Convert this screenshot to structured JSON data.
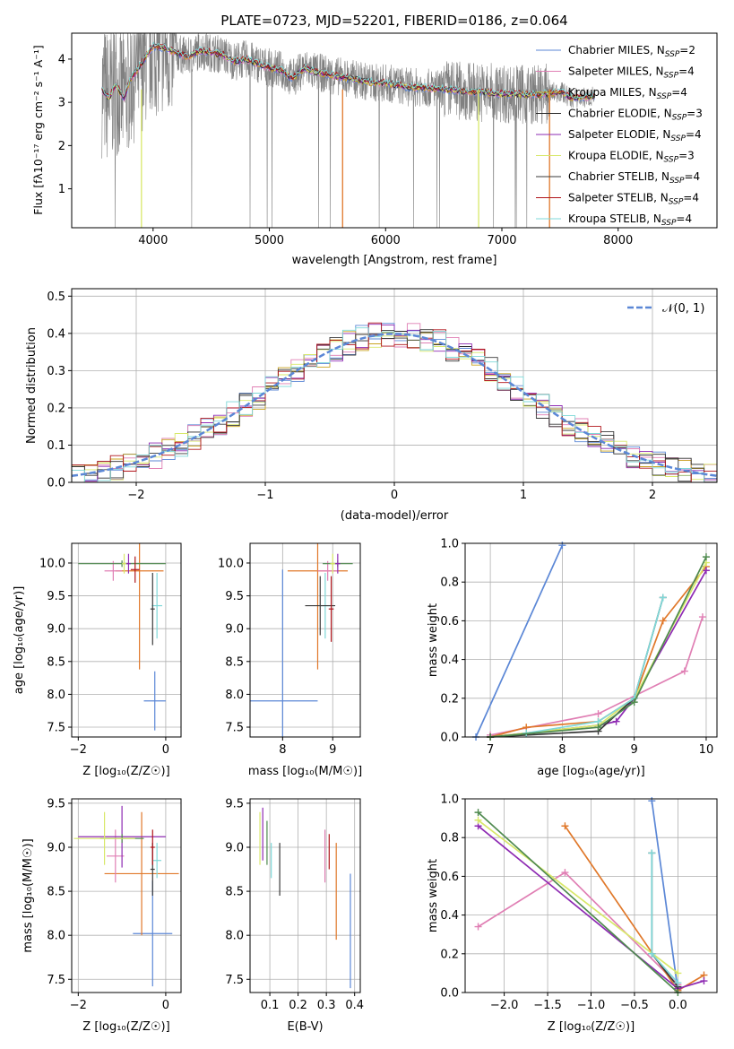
{
  "colors": {
    "Chabrier MILES": "#5b87d6",
    "Salpeter MILES": "#e07fb4",
    "Kroupa MILES": "#c9a31f",
    "Chabrier ELODIE": "#2a2a2a",
    "Salpeter ELODIE": "#8e2bb3",
    "Kroupa ELODIE": "#d8e86a",
    "Chabrier STELIB": "#3a3a3a",
    "Salpeter STELIB": "#b0141a",
    "Kroupa STELIB": "#7fd8d8",
    "orange": "#e0782a",
    "green": "#4f8a4f",
    "data": "#808080",
    "gaussian": "#5b87d6"
  },
  "chart_data": [
    {
      "id": "spectrum",
      "type": "line",
      "title": "PLATE=0723, MJD=52201, FIBERID=0186, z=0.064",
      "xlabel": "wavelength [Angstrom, rest frame]",
      "ylabel": "Flux [fλ10⁻¹⁷ erg cm⁻² s⁻¹ A⁻¹]",
      "xlim": [
        3300,
        8850
      ],
      "ylim": [
        0.1,
        4.6
      ],
      "xticks": [
        "4000",
        "5000",
        "6000",
        "7000",
        "8000"
      ],
      "yticks": [
        "1",
        "2",
        "3",
        "4"
      ],
      "legend_position": "top-right",
      "legend": [
        {
          "name": "Chabrier MILES",
          "nssp": "2"
        },
        {
          "name": "Salpeter MILES",
          "nssp": "4"
        },
        {
          "name": "Kroupa MILES",
          "nssp": "4"
        },
        {
          "name": "Chabrier ELODIE",
          "nssp": "3"
        },
        {
          "name": "Salpeter ELODIE",
          "nssp": "4"
        },
        {
          "name": "Kroupa ELODIE",
          "nssp": "3"
        },
        {
          "name": "Chabrier STELIB",
          "nssp": "4"
        },
        {
          "name": "Salpeter STELIB",
          "nssp": "4"
        },
        {
          "name": "Kroupa STELIB",
          "nssp": "4"
        }
      ],
      "continuum": [
        [
          3560,
          3.3
        ],
        [
          3620,
          3.1
        ],
        [
          3680,
          3.4
        ],
        [
          3750,
          3.1
        ],
        [
          3800,
          3.5
        ],
        [
          3900,
          3.9
        ],
        [
          4000,
          4.3
        ],
        [
          4100,
          4.25
        ],
        [
          4200,
          4.15
        ],
        [
          4300,
          4.05
        ],
        [
          4400,
          4.2
        ],
        [
          4500,
          4.15
        ],
        [
          4600,
          4.1
        ],
        [
          4700,
          3.95
        ],
        [
          4800,
          4.0
        ],
        [
          4900,
          3.9
        ],
        [
          5000,
          3.8
        ],
        [
          5100,
          3.75
        ],
        [
          5200,
          3.55
        ],
        [
          5300,
          3.8
        ],
        [
          5400,
          3.7
        ],
        [
          5500,
          3.65
        ],
        [
          5600,
          3.6
        ],
        [
          5700,
          3.55
        ],
        [
          5800,
          3.5
        ],
        [
          5900,
          3.45
        ],
        [
          6000,
          3.45
        ],
        [
          6100,
          3.4
        ],
        [
          6200,
          3.35
        ],
        [
          6300,
          3.35
        ],
        [
          6400,
          3.32
        ],
        [
          6500,
          3.3
        ],
        [
          6600,
          3.28
        ],
        [
          6700,
          3.25
        ],
        [
          6800,
          3.25
        ],
        [
          6900,
          3.22
        ],
        [
          7000,
          3.2
        ],
        [
          7100,
          3.2
        ],
        [
          7200,
          3.18
        ],
        [
          7300,
          3.18
        ],
        [
          7400,
          3.2
        ],
        [
          7500,
          3.25
        ],
        [
          7600,
          3.1
        ],
        [
          7700,
          3.1
        ],
        [
          7800,
          3.15
        ]
      ]
    },
    {
      "id": "residuals",
      "type": "step",
      "xlabel": "(data-model)/error",
      "ylabel": "Normed distribution",
      "xlim": [
        -2.5,
        2.5
      ],
      "ylim": [
        0,
        0.52
      ],
      "xticks": [
        "−2",
        "−1",
        "0",
        "1",
        "2"
      ],
      "yticks": [
        "0.0",
        "0.1",
        "0.2",
        "0.3",
        "0.4",
        "0.5"
      ],
      "legend": "𝒩(0, 1)",
      "legend_position": "top-right",
      "bin_width": 0.1
    },
    {
      "id": "age_vs_z",
      "type": "errorbar",
      "xlabel": "Z [log₁₀(Z/Z☉)]",
      "ylabel": "age  [log₁₀(age/yr)]",
      "xlim": [
        -2.15,
        0.35
      ],
      "ylim": [
        7.35,
        10.3
      ],
      "xticks": [
        "−2",
        "0"
      ],
      "yticks": [
        "7.5",
        "8.0",
        "8.5",
        "9.0",
        "9.5",
        "10.0"
      ],
      "points": [
        {
          "series": "Chabrier MILES",
          "x": -0.25,
          "y": 7.9,
          "xerr": 0.25,
          "yerr": 0.45
        },
        {
          "series": "orange",
          "x": -0.6,
          "y": 9.88,
          "xerr": 0.55,
          "yerr": 1.5
        },
        {
          "series": "Salpeter MILES",
          "x": -1.2,
          "y": 9.88,
          "xerr": 0.2,
          "yerr": 0.15
        },
        {
          "series": "green",
          "x": -1.0,
          "y": 9.99,
          "xerr": 1.0,
          "yerr": 0.05
        },
        {
          "series": "Salpeter ELODIE",
          "x": -0.85,
          "y": 9.99,
          "xerr": 0.05,
          "yerr": 0.15
        },
        {
          "series": "Kroupa ELODIE",
          "x": -0.95,
          "y": 9.99,
          "xerr": 0.05,
          "yerr": 0.15
        },
        {
          "series": "Kroupa STELIB",
          "x": -0.2,
          "y": 9.35,
          "xerr": 0.12,
          "yerr": 0.5
        },
        {
          "series": "Chabrier STELIB",
          "x": -0.3,
          "y": 9.3,
          "xerr": 0.05,
          "yerr": 0.55
        },
        {
          "series": "Salpeter STELIB",
          "x": -0.7,
          "y": 9.9,
          "xerr": 0.1,
          "yerr": 0.2
        }
      ]
    },
    {
      "id": "age_vs_mass",
      "type": "errorbar",
      "xlabel": "mass [log₁₀(M/M☉)]",
      "xlim": [
        7.35,
        9.55
      ],
      "ylim": [
        7.35,
        10.3
      ],
      "xticks": [
        "8",
        "9"
      ],
      "yticks": [
        "7.5",
        "8.0",
        "8.5",
        "9.0",
        "9.5",
        "10.0"
      ],
      "points": [
        {
          "series": "Chabrier MILES",
          "x": 8.0,
          "y": 7.9,
          "xerr": 0.7,
          "yerr": 2.0
        },
        {
          "series": "orange",
          "x": 8.7,
          "y": 9.88,
          "xerr": 0.6,
          "yerr": 1.5
        },
        {
          "series": "Salpeter MILES",
          "x": 8.9,
          "y": 9.88,
          "xerr": 0.2,
          "yerr": 0.15
        },
        {
          "series": "green",
          "x": 9.1,
          "y": 9.99,
          "xerr": 0.3,
          "yerr": 0.05
        },
        {
          "series": "Salpeter ELODIE",
          "x": 9.1,
          "y": 9.99,
          "xerr": 0.05,
          "yerr": 0.15
        },
        {
          "series": "Kroupa ELODIE",
          "x": 9.0,
          "y": 9.99,
          "xerr": 0.05,
          "yerr": 0.15
        },
        {
          "series": "Kroupa STELIB",
          "x": 8.85,
          "y": 9.35,
          "xerr": 0.1,
          "yerr": 0.5
        },
        {
          "series": "Chabrier STELIB",
          "x": 8.75,
          "y": 9.35,
          "xerr": 0.3,
          "yerr": 0.45
        },
        {
          "series": "Salpeter STELIB",
          "x": 8.97,
          "y": 9.3,
          "xerr": 0.05,
          "yerr": 0.5
        }
      ]
    },
    {
      "id": "weight_vs_age",
      "type": "line",
      "xlabel": "age  [log₁₀(age/yr)]",
      "ylabel": "mass weight",
      "xlim": [
        6.65,
        10.15
      ],
      "ylim": [
        0,
        1.0
      ],
      "xticks": [
        "7",
        "8",
        "9",
        "10"
      ],
      "yticks": [
        "0.0",
        "0.2",
        "0.4",
        "0.6",
        "0.8",
        "1.0"
      ],
      "series": [
        {
          "series": "Chabrier MILES",
          "x": [
            6.8,
            8.0
          ],
          "y": [
            0.0,
            0.99
          ]
        },
        {
          "series": "Salpeter MILES",
          "x": [
            7.0,
            8.5,
            9.7,
            9.95
          ],
          "y": [
            0.01,
            0.12,
            0.34,
            0.62
          ]
        },
        {
          "series": "orange",
          "x": [
            7.0,
            7.5,
            8.5,
            9.0,
            9.4,
            10.0
          ],
          "y": [
            0.0,
            0.05,
            0.08,
            0.2,
            0.6,
            0.88
          ]
        },
        {
          "series": "Salpeter ELODIE",
          "x": [
            7.0,
            8.5,
            8.75,
            9.0,
            10.0
          ],
          "y": [
            0.0,
            0.06,
            0.08,
            0.2,
            0.86
          ]
        },
        {
          "series": "Kroupa ELODIE",
          "x": [
            7.0,
            8.5,
            9.0,
            10.0
          ],
          "y": [
            0.0,
            0.06,
            0.2,
            0.9
          ]
        },
        {
          "series": "Chabrier STELIB",
          "x": [
            7.0,
            8.5,
            9.0,
            9.4
          ],
          "y": [
            0.0,
            0.03,
            0.2,
            0.72
          ]
        },
        {
          "series": "Kroupa STELIB",
          "x": [
            7.5,
            8.5,
            9.0,
            9.4
          ],
          "y": [
            0.02,
            0.08,
            0.2,
            0.72
          ]
        },
        {
          "series": "green",
          "x": [
            7.0,
            8.5,
            9.0,
            10.0
          ],
          "y": [
            0.0,
            0.05,
            0.18,
            0.93
          ]
        }
      ]
    },
    {
      "id": "mass_vs_z",
      "type": "errorbar",
      "xlabel": "Z [log₁₀(Z/Z☉)]",
      "ylabel": "mass [log₁₀(M/M☉)]",
      "xlim": [
        -2.15,
        0.35
      ],
      "ylim": [
        7.35,
        9.55
      ],
      "xticks": [
        "−2",
        "0"
      ],
      "yticks": [
        "7.5",
        "8.0",
        "8.5",
        "9.0",
        "9.5"
      ],
      "points": [
        {
          "series": "Chabrier MILES",
          "x": -0.3,
          "y": 8.02,
          "xerr": 0.45,
          "yerr": 0.6
        },
        {
          "series": "orange",
          "x": -0.55,
          "y": 8.7,
          "xerr": 0.85,
          "yerr": 0.7
        },
        {
          "series": "Salpeter MILES",
          "x": -1.15,
          "y": 8.9,
          "xerr": 0.2,
          "yerr": 0.3
        },
        {
          "series": "Salpeter ELODIE",
          "x": -1.0,
          "y": 9.12,
          "xerr": 1.0,
          "yerr": 0.35
        },
        {
          "series": "green",
          "x": -1.0,
          "y": 9.1,
          "xerr": 0.5,
          "yerr": 0.05
        },
        {
          "series": "Kroupa ELODIE",
          "x": -1.4,
          "y": 9.1,
          "xerr": 0.7,
          "yerr": 0.3
        },
        {
          "series": "Chabrier STELIB",
          "x": -0.3,
          "y": 8.75,
          "xerr": 0.05,
          "yerr": 0.3
        },
        {
          "series": "Kroupa STELIB",
          "x": -0.2,
          "y": 8.85,
          "xerr": 0.1,
          "yerr": 0.2
        },
        {
          "series": "Salpeter STELIB",
          "x": -0.3,
          "y": 9.0,
          "xerr": 0.05,
          "yerr": 0.2
        }
      ]
    },
    {
      "id": "mass_vs_ebv",
      "type": "errorbar",
      "xlabel": "E(B-V)",
      "xlim": [
        0.03,
        0.42
      ],
      "ylim": [
        7.35,
        9.55
      ],
      "xticks": [
        "0.1",
        "0.2",
        "0.3",
        "0.4"
      ],
      "yticks": [
        "7.5",
        "8.0",
        "8.5",
        "9.0",
        "9.5"
      ],
      "points": [
        {
          "series": "Chabrier MILES",
          "x": 0.385,
          "y": 8.05,
          "xerr": 0,
          "yerr": 0.65
        },
        {
          "series": "orange",
          "x": 0.335,
          "y": 8.5,
          "xerr": 0,
          "yerr": 0.55
        },
        {
          "series": "Salpeter MILES",
          "x": 0.295,
          "y": 8.9,
          "xerr": 0,
          "yerr": 0.3
        },
        {
          "series": "Salpeter ELODIE",
          "x": 0.075,
          "y": 9.15,
          "xerr": 0,
          "yerr": 0.3
        },
        {
          "series": "Kroupa ELODIE",
          "x": 0.065,
          "y": 9.1,
          "xerr": 0,
          "yerr": 0.3
        },
        {
          "series": "green",
          "x": 0.09,
          "y": 9.05,
          "xerr": 0,
          "yerr": 0.25
        },
        {
          "series": "Kroupa STELIB",
          "x": 0.105,
          "y": 8.85,
          "xerr": 0,
          "yerr": 0.2
        },
        {
          "series": "Chabrier STELIB",
          "x": 0.135,
          "y": 8.75,
          "xerr": 0,
          "yerr": 0.3
        },
        {
          "series": "Salpeter STELIB",
          "x": 0.31,
          "y": 8.95,
          "xerr": 0,
          "yerr": 0.2
        }
      ]
    },
    {
      "id": "weight_vs_z",
      "type": "line",
      "xlabel": "Z [log₁₀(Z/Z☉)]",
      "ylabel": "mass weight",
      "xlim": [
        -2.45,
        0.45
      ],
      "ylim": [
        0,
        1.0
      ],
      "xticks": [
        "−2.0",
        "−1.5",
        "−1.0",
        "−0.5",
        "0.0"
      ],
      "yticks": [
        "0.0",
        "0.2",
        "0.4",
        "0.6",
        "0.8",
        "1.0"
      ],
      "series": [
        {
          "series": "Chabrier MILES",
          "x": [
            -0.3,
            0.0
          ],
          "y": [
            0.99,
            0.01
          ]
        },
        {
          "series": "Salpeter MILES",
          "x": [
            -2.3,
            -1.3,
            0.0
          ],
          "y": [
            0.34,
            0.62,
            0.04
          ]
        },
        {
          "series": "orange",
          "x": [
            -1.3,
            0.0,
            0.3
          ],
          "y": [
            0.86,
            0.01,
            0.09
          ]
        },
        {
          "series": "Salpeter ELODIE",
          "x": [
            -2.3,
            0.0,
            0.3
          ],
          "y": [
            0.86,
            0.02,
            0.06
          ]
        },
        {
          "series": "Kroupa ELODIE",
          "x": [
            -2.3,
            0.0
          ],
          "y": [
            0.89,
            0.1
          ]
        },
        {
          "series": "Chabrier STELIB",
          "x": [
            -0.3,
            -0.3,
            0.0
          ],
          "y": [
            0.72,
            0.2,
            0.03
          ]
        },
        {
          "series": "Kroupa STELIB",
          "x": [
            -0.3,
            -0.3,
            0.0
          ],
          "y": [
            0.72,
            0.2,
            0.05
          ]
        },
        {
          "series": "green",
          "x": [
            -2.3,
            0.0
          ],
          "y": [
            0.93,
            0.0
          ]
        }
      ]
    }
  ]
}
